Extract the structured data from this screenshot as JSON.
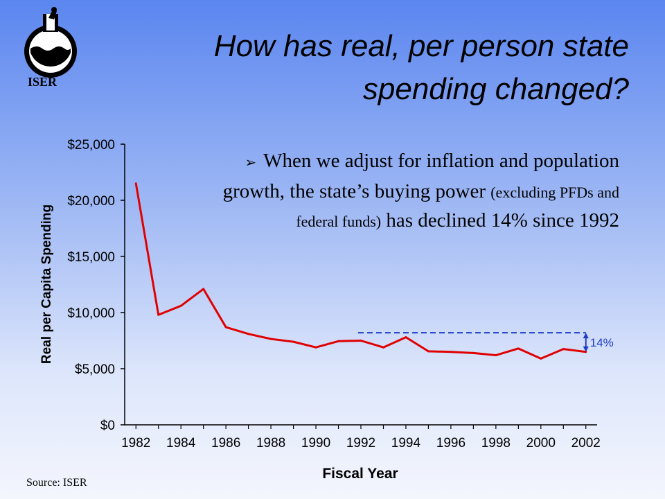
{
  "logo": {
    "text": "ISER",
    "icon": "flask-water-icon"
  },
  "title": {
    "line1": "How has real, per person state",
    "line2": "spending changed?"
  },
  "bullet": {
    "marker": "➢",
    "part1": "When we adjust for inflation and population growth, the state’s buying power",
    "part2": "(excluding PFDs and federal funds)",
    "part3": "has declined 14% since 1992"
  },
  "source": "Source: ISER",
  "chart_data": {
    "type": "line",
    "xlabel": "Fiscal Year",
    "ylabel": "Real per Capita Spending",
    "ylim": [
      0,
      25000
    ],
    "yticks": [
      0,
      5000,
      10000,
      15000,
      20000,
      25000
    ],
    "ytick_labels": [
      "$0",
      "$5,000",
      "$10,000",
      "$15,000",
      "$20,000",
      "$25,000"
    ],
    "xticks": [
      1982,
      1984,
      1986,
      1988,
      1990,
      1992,
      1994,
      1996,
      1998,
      2000,
      2002
    ],
    "xtick_labels": [
      "1982",
      "1984",
      "1986",
      "1988",
      "1990",
      "1992",
      "1994",
      "1996",
      "1998",
      "2000",
      "2002"
    ],
    "xlim": [
      1981.5,
      2002.5
    ],
    "series": [
      {
        "color": "#e00000",
        "x": [
          1982,
          1983,
          1984,
          1985,
          1986,
          1987,
          1988,
          1989,
          1990,
          1991,
          1992,
          1993,
          1994,
          1995,
          1996,
          1997,
          1998,
          1999,
          2000,
          2001,
          2002
        ],
        "y": [
          21500,
          9800,
          10600,
          12100,
          8700,
          8100,
          7650,
          7400,
          6900,
          7450,
          7500,
          6900,
          7800,
          6550,
          6500,
          6400,
          6200,
          6800,
          5900,
          6750,
          6500
        ]
      }
    ],
    "annotation": {
      "label": "14%",
      "reference_from": 1992,
      "reference_to": 2002,
      "reference_value": 8200,
      "color": "#1e3cc8"
    }
  }
}
